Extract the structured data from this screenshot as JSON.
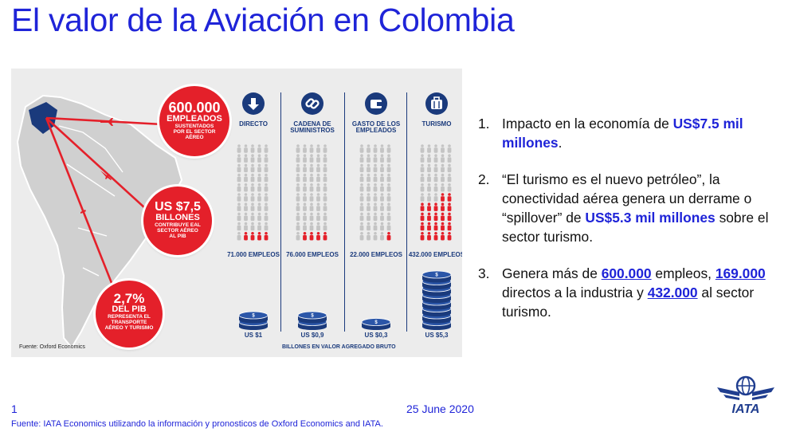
{
  "title": "El valor de la Aviación en Colombia",
  "infographic": {
    "map_source": "Fuente: Oxford Economics",
    "circles": [
      {
        "big": "600.000",
        "med": "EMPLEADOS",
        "small": "SUSTENTADOS POR EL SECTOR AÉREO"
      },
      {
        "big": "US $7,5",
        "med": "BILLONES",
        "small": "CONTRIBUYE EAL SECTOR AÉREO AL PIB"
      },
      {
        "big": "2,7%",
        "med": "DEL PIB",
        "small": "REPRESENTA EL TRANSPORTE AÉREO Y TURISMO"
      }
    ],
    "columns": [
      {
        "head": "DIRECTO",
        "total": "71.000 EMPLEOS",
        "value": "US $1",
        "icon": "arrow-down-icon",
        "red_people": 4,
        "coins": 2
      },
      {
        "head": "CADENA DE SUMINISTROS",
        "total": "76.000 EMPLEOS",
        "value": "US $0,9",
        "icon": "chain-link-icon",
        "red_people": 4,
        "coins": 2
      },
      {
        "head": "GASTO DE LOS EMPLEADOS",
        "total": "22.000 EMPLEOS",
        "value": "US $0,3",
        "icon": "wallet-icon",
        "red_people": 1,
        "coins": 1
      },
      {
        "head": "TURISMO",
        "total": "432.000 EMPLEOS",
        "value": "US $5,3",
        "icon": "suitcase-icon",
        "red_people": 22,
        "coins": 8
      }
    ],
    "caption": "BILLONES EN VALOR AGREGADO BRUTO"
  },
  "list": {
    "item1": {
      "num": "1.",
      "pre": "Impacto en la economía de ",
      "hl": "US$7.5 mil millones",
      "post": "."
    },
    "item2": {
      "num": "2.",
      "pre": "“El turismo es el nuevo petróleo”, la conectividad aérea genera un derrame o “spillover” de ",
      "hl": "US$5.3 mil millones",
      "post": " sobre el sector turismo."
    },
    "item3": {
      "num": "3.",
      "pre": "Genera más de ",
      "hl1": "600.000",
      "mid1": " empleos, ",
      "hl2": "169.000",
      "mid2": " directos a la industria y ",
      "hl3": "432.000",
      "post": " al sector turismo."
    }
  },
  "footer": {
    "page": "1",
    "date": "25 June 2020",
    "source": "Fuente: IATA Economics utilizando la información y pronosticos de Oxford Economics and IATA."
  },
  "logo_text": "IATA",
  "colors": {
    "title_blue": "#1f24d8",
    "navy": "#1a3a7c",
    "red": "#e4202a"
  }
}
